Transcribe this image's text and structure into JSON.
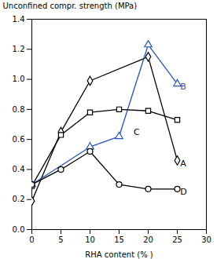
{
  "chart_data": {
    "type": "line",
    "xlabel": "RHA content (% )",
    "ylabel": "Unconfined compr. strength (MPa)",
    "xlim": [
      0,
      30
    ],
    "ylim": [
      0.0,
      1.4
    ],
    "xticks": [
      0,
      5,
      10,
      15,
      20,
      25,
      30
    ],
    "yticks": [
      {
        "value": 0.0,
        "label": "0.0"
      },
      0.2,
      0.4,
      0.6,
      0.8,
      {
        "value": 1.0,
        "label": "1.0"
      },
      1.2,
      1.4
    ],
    "grid": false,
    "series": [
      {
        "name": "A",
        "color": "#000000",
        "marker": "diamond",
        "x": [
          0,
          5,
          10,
          20,
          25
        ],
        "values": [
          0.19,
          0.65,
          0.99,
          1.15,
          0.46
        ]
      },
      {
        "name": "B",
        "color": "#2255bb",
        "marker": "triangle",
        "x": [
          0,
          10,
          15,
          20,
          25
        ],
        "values": [
          0.3,
          0.55,
          0.62,
          1.23,
          0.97
        ]
      },
      {
        "name": "C",
        "color": "#000000",
        "marker": "square",
        "x": [
          0,
          5,
          10,
          15,
          20,
          25
        ],
        "values": [
          0.29,
          0.63,
          0.78,
          0.8,
          0.79,
          0.73
        ]
      },
      {
        "name": "D",
        "color": "#000000",
        "marker": "circle",
        "x": [
          0,
          5,
          10,
          15,
          20,
          25
        ],
        "values": [
          0.3,
          0.4,
          0.52,
          0.3,
          0.27,
          0.27
        ]
      }
    ],
    "annotations": [
      {
        "text": "A",
        "x": 25.5,
        "y": 0.44,
        "color": "#000000"
      },
      {
        "text": "B",
        "x": 25.5,
        "y": 0.95,
        "color": "#2255bb"
      },
      {
        "text": "C",
        "x": 17.5,
        "y": 0.65,
        "color": "#000000"
      },
      {
        "text": "D",
        "x": 25.5,
        "y": 0.25,
        "color": "#000000"
      }
    ]
  }
}
